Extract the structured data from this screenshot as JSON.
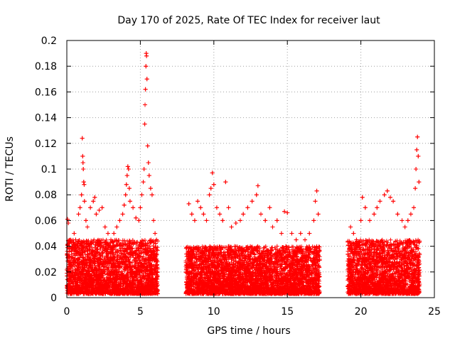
{
  "chart_data": {
    "type": "scatter",
    "title": "Day 170 of 2025, Rate Of TEC Index for receiver laut",
    "xlabel": "GPS time / hours",
    "ylabel": "ROTI / TECUs",
    "xlim": [
      0,
      25
    ],
    "ylim": [
      0,
      0.2
    ],
    "xticks": [
      0,
      5,
      10,
      15,
      20,
      25
    ],
    "xtick_labels": [
      "0",
      "5",
      "10",
      "15",
      "20",
      "25"
    ],
    "yticks": [
      0,
      0.02,
      0.04,
      0.06,
      0.08,
      0.1,
      0.12,
      0.14,
      0.16,
      0.18,
      0.2
    ],
    "ytick_labels": [
      "0",
      "0.02",
      "0.04",
      "0.06",
      "0.08",
      "0.1",
      "0.12",
      "0.14",
      "0.16",
      "0.18",
      "0.2"
    ],
    "grid": true,
    "marker": "+",
    "color": "#ff0000",
    "data_gaps_hours": [
      [
        6.2,
        8.1
      ],
      [
        17.2,
        19.1
      ]
    ],
    "series": [
      {
        "name": "ROTI",
        "points": [
          [
            0.05,
            0.061
          ],
          [
            0.1,
            0.058
          ],
          [
            0.15,
            0.038
          ],
          [
            0.2,
            0.032
          ],
          [
            0.3,
            0.025
          ],
          [
            0.4,
            0.02
          ],
          [
            0.5,
            0.05
          ],
          [
            0.6,
            0.045
          ],
          [
            0.8,
            0.065
          ],
          [
            0.9,
            0.07
          ],
          [
            1.0,
            0.08
          ],
          [
            1.05,
            0.124
          ],
          [
            1.08,
            0.11
          ],
          [
            1.1,
            0.105
          ],
          [
            1.12,
            0.1
          ],
          [
            1.15,
            0.09
          ],
          [
            1.18,
            0.088
          ],
          [
            1.2,
            0.075
          ],
          [
            1.3,
            0.06
          ],
          [
            1.4,
            0.055
          ],
          [
            1.6,
            0.07
          ],
          [
            1.8,
            0.075
          ],
          [
            1.9,
            0.078
          ],
          [
            2.0,
            0.065
          ],
          [
            2.2,
            0.068
          ],
          [
            2.4,
            0.07
          ],
          [
            2.6,
            0.055
          ],
          [
            2.8,
            0.05
          ],
          [
            3.0,
            0.045
          ],
          [
            3.2,
            0.05
          ],
          [
            3.4,
            0.055
          ],
          [
            3.6,
            0.06
          ],
          [
            3.8,
            0.065
          ],
          [
            3.9,
            0.072
          ],
          [
            4.0,
            0.08
          ],
          [
            4.05,
            0.088
          ],
          [
            4.1,
            0.095
          ],
          [
            4.15,
            0.102
          ],
          [
            4.2,
            0.1
          ],
          [
            4.25,
            0.085
          ],
          [
            4.3,
            0.075
          ],
          [
            4.5,
            0.07
          ],
          [
            4.7,
            0.062
          ],
          [
            4.9,
            0.06
          ],
          [
            5.0,
            0.07
          ],
          [
            5.1,
            0.08
          ],
          [
            5.2,
            0.09
          ],
          [
            5.25,
            0.1
          ],
          [
            5.3,
            0.135
          ],
          [
            5.32,
            0.15
          ],
          [
            5.35,
            0.162
          ],
          [
            5.38,
            0.18
          ],
          [
            5.4,
            0.19
          ],
          [
            5.42,
            0.188
          ],
          [
            5.45,
            0.17
          ],
          [
            5.5,
            0.118
          ],
          [
            5.55,
            0.105
          ],
          [
            5.6,
            0.095
          ],
          [
            5.7,
            0.085
          ],
          [
            5.8,
            0.08
          ],
          [
            5.9,
            0.06
          ],
          [
            6.0,
            0.05
          ],
          [
            6.1,
            0.045
          ],
          [
            8.3,
            0.073
          ],
          [
            8.5,
            0.065
          ],
          [
            8.7,
            0.06
          ],
          [
            8.9,
            0.075
          ],
          [
            9.1,
            0.07
          ],
          [
            9.3,
            0.065
          ],
          [
            9.5,
            0.06
          ],
          [
            9.7,
            0.08
          ],
          [
            9.8,
            0.085
          ],
          [
            9.9,
            0.097
          ],
          [
            10.0,
            0.088
          ],
          [
            10.2,
            0.07
          ],
          [
            10.4,
            0.065
          ],
          [
            10.6,
            0.06
          ],
          [
            10.8,
            0.09
          ],
          [
            11.0,
            0.07
          ],
          [
            11.2,
            0.055
          ],
          [
            11.5,
            0.058
          ],
          [
            11.8,
            0.06
          ],
          [
            12.0,
            0.065
          ],
          [
            12.3,
            0.07
          ],
          [
            12.6,
            0.075
          ],
          [
            12.9,
            0.08
          ],
          [
            13.0,
            0.087
          ],
          [
            13.2,
            0.065
          ],
          [
            13.5,
            0.06
          ],
          [
            13.8,
            0.07
          ],
          [
            14.0,
            0.055
          ],
          [
            14.3,
            0.06
          ],
          [
            14.6,
            0.05
          ],
          [
            14.8,
            0.067
          ],
          [
            15.0,
            0.066
          ],
          [
            15.3,
            0.05
          ],
          [
            15.6,
            0.045
          ],
          [
            15.9,
            0.05
          ],
          [
            16.2,
            0.045
          ],
          [
            16.5,
            0.05
          ],
          [
            16.8,
            0.06
          ],
          [
            16.9,
            0.075
          ],
          [
            17.0,
            0.083
          ],
          [
            17.1,
            0.065
          ],
          [
            19.3,
            0.055
          ],
          [
            19.5,
            0.05
          ],
          [
            19.7,
            0.045
          ],
          [
            20.0,
            0.06
          ],
          [
            20.1,
            0.078
          ],
          [
            20.3,
            0.07
          ],
          [
            20.6,
            0.06
          ],
          [
            20.9,
            0.065
          ],
          [
            21.1,
            0.07
          ],
          [
            21.3,
            0.075
          ],
          [
            21.6,
            0.08
          ],
          [
            21.8,
            0.083
          ],
          [
            22.0,
            0.078
          ],
          [
            22.2,
            0.075
          ],
          [
            22.5,
            0.065
          ],
          [
            22.8,
            0.06
          ],
          [
            23.0,
            0.055
          ],
          [
            23.2,
            0.06
          ],
          [
            23.4,
            0.065
          ],
          [
            23.6,
            0.07
          ],
          [
            23.7,
            0.085
          ],
          [
            23.75,
            0.1
          ],
          [
            23.8,
            0.115
          ],
          [
            23.85,
            0.125
          ],
          [
            23.9,
            0.11
          ],
          [
            23.95,
            0.09
          ]
        ]
      }
    ],
    "dense_band": {
      "description": "dense cloud of points near the baseline",
      "segments": [
        {
          "x_range": [
            0.0,
            6.2
          ],
          "y_range": [
            0.003,
            0.045
          ]
        },
        {
          "x_range": [
            8.1,
            17.2
          ],
          "y_range": [
            0.003,
            0.04
          ]
        },
        {
          "x_range": [
            19.1,
            24.0
          ],
          "y_range": [
            0.003,
            0.045
          ]
        }
      ]
    }
  }
}
